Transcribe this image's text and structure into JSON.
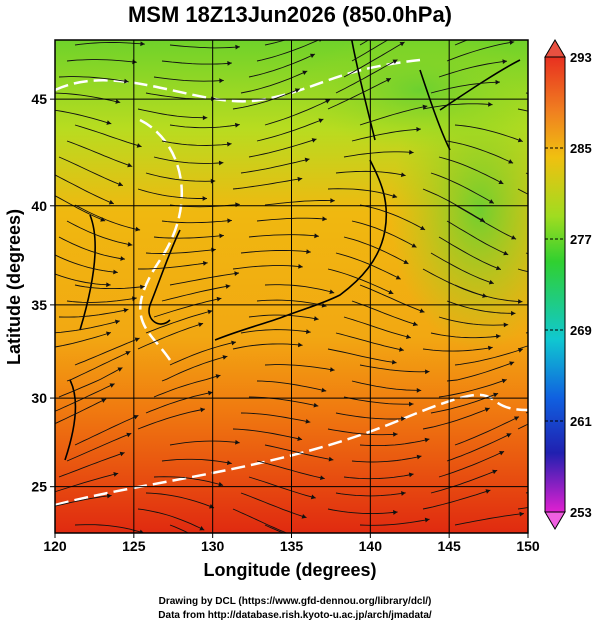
{
  "map": {
    "title": "MSM 18Z13Jun2026 (850.0hPa)",
    "x_label": "Longitude (degrees)",
    "y_label": "Latitude  (degrees)",
    "projection": "mercator",
    "xlim": [
      120,
      150
    ],
    "ylim": [
      22.3,
      47.6
    ],
    "xticks": [
      120,
      125,
      130,
      135,
      140,
      145,
      150
    ],
    "yticks": [
      25,
      30,
      35,
      40,
      45
    ],
    "grid": true,
    "colorbar": {
      "lim": [
        253,
        293
      ],
      "ticks": [
        293,
        285,
        277,
        269,
        261,
        253
      ]
    },
    "credits": [
      "Drawing by DCL (https://www.gfd-dennou.org/library/dcl/)",
      "Data from http://database.rish.kyoto-u.ac.jp/arch/jmadata/"
    ]
  }
}
